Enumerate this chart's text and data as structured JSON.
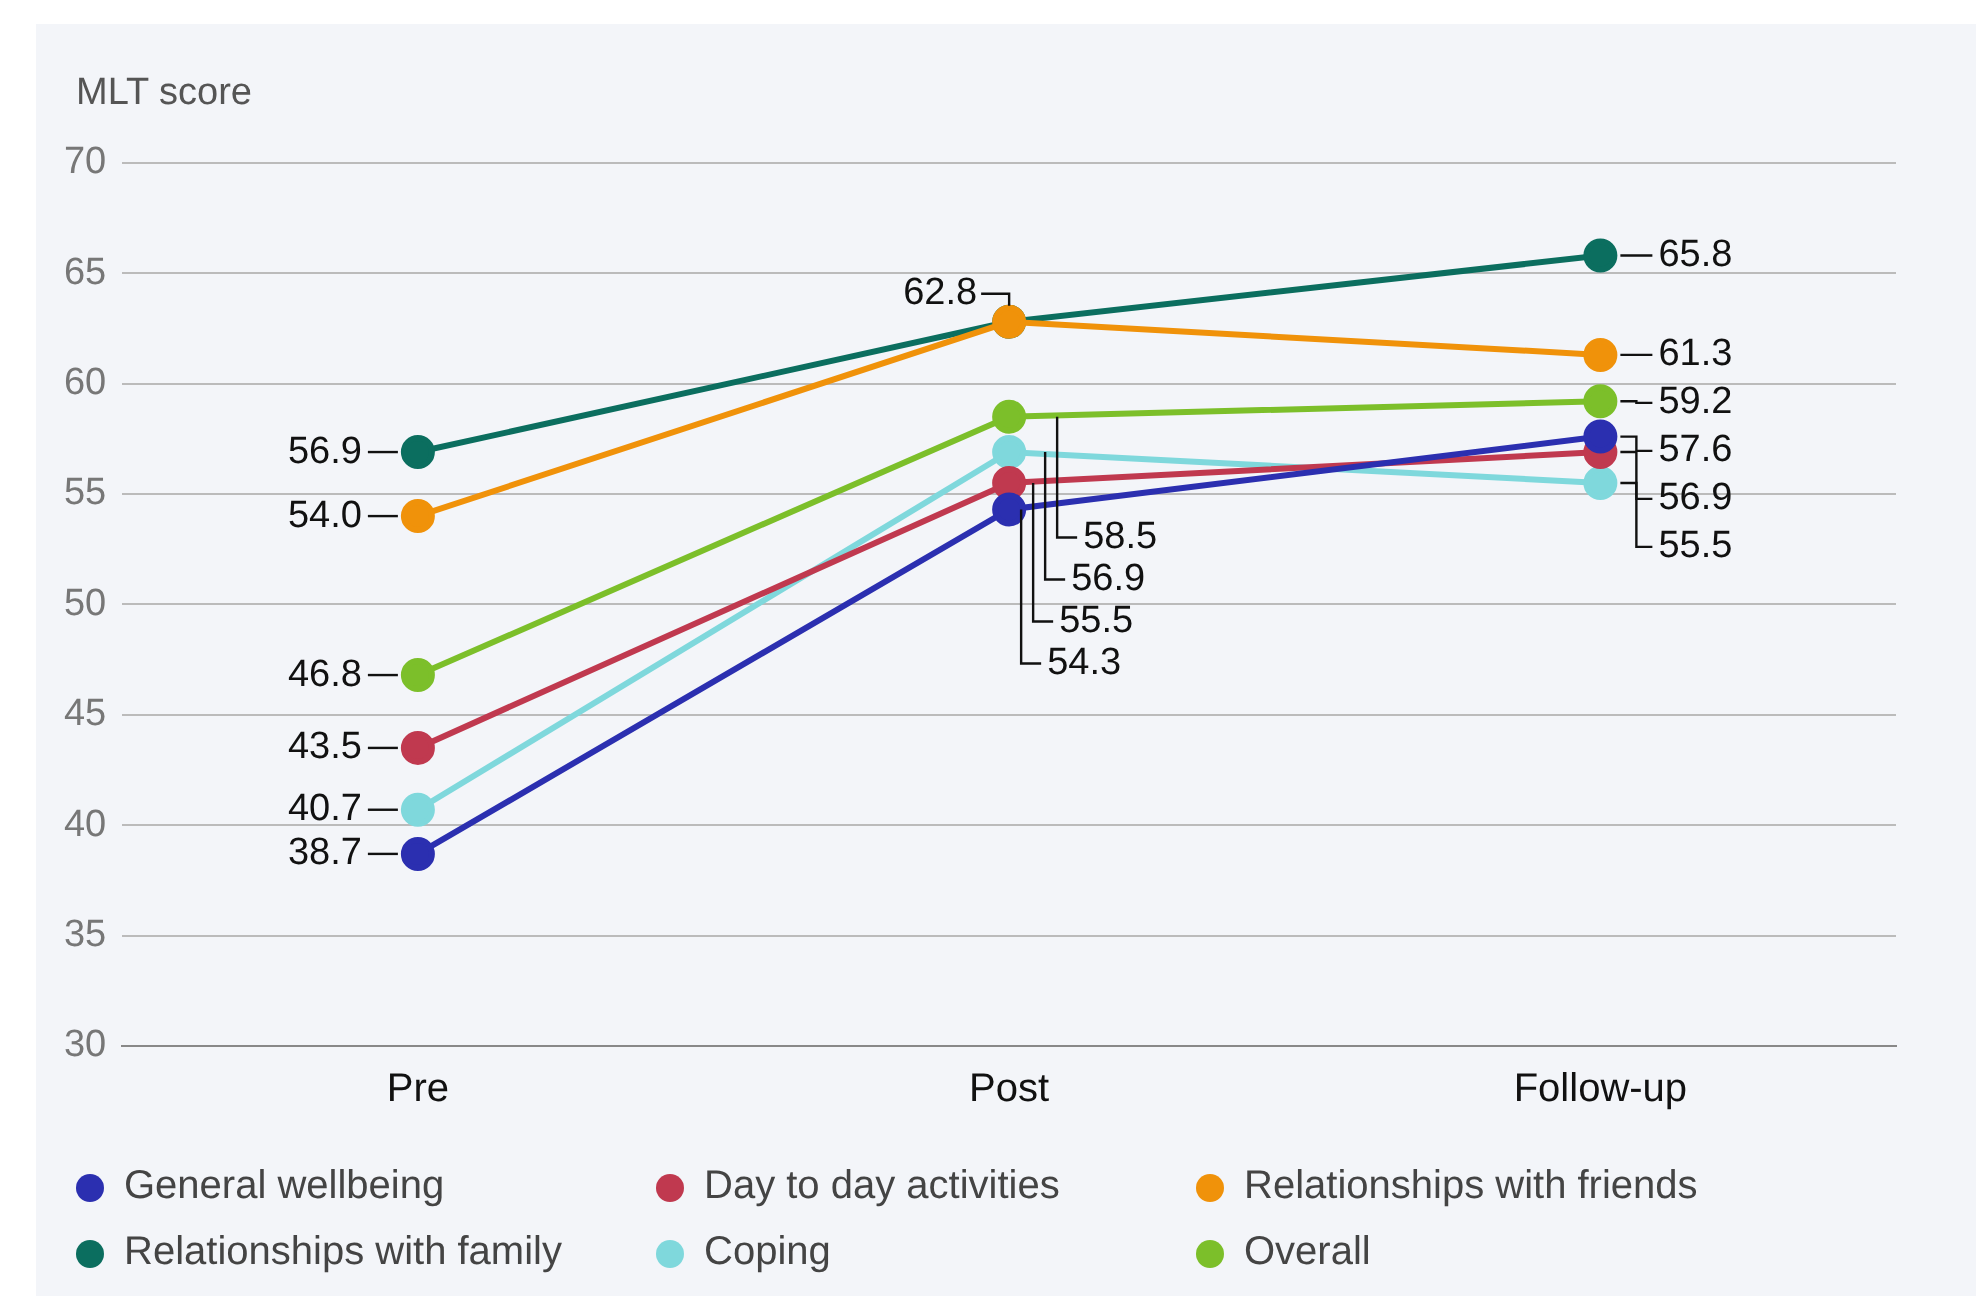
{
  "chart_data": {
    "type": "line",
    "ylabel": "MLT score",
    "categories": [
      "Pre",
      "Post",
      "Follow-up"
    ],
    "ylim": [
      30,
      70
    ],
    "yticks": [
      30,
      35,
      40,
      45,
      50,
      55,
      60,
      65,
      70
    ],
    "grid": "y",
    "legend": "bottom",
    "marker": "circle",
    "line_style": "solid",
    "series": [
      {
        "name": "General wellbeing",
        "color": "#2b2fb0",
        "values": [
          38.7,
          54.3,
          57.6
        ],
        "value_labels": [
          "38.7",
          "54.3",
          "57.6"
        ]
      },
      {
        "name": "Day to day activities",
        "color": "#c0394f",
        "values": [
          43.5,
          55.5,
          56.9
        ],
        "value_labels": [
          "43.5",
          "55.5",
          "56.9"
        ]
      },
      {
        "name": "Relationships with friends",
        "color": "#f0920a",
        "values": [
          54.0,
          62.8,
          61.3
        ],
        "value_labels": [
          "54.0",
          null,
          "61.3"
        ]
      },
      {
        "name": "Relationships with family",
        "color": "#0b6e5f",
        "values": [
          56.9,
          62.8,
          65.8
        ],
        "value_labels": [
          "56.9",
          "62.8",
          "65.8"
        ]
      },
      {
        "name": "Coping",
        "color": "#7fd8dc",
        "values": [
          40.7,
          56.9,
          55.5
        ],
        "value_labels": [
          "40.7",
          "56.9",
          "55.5"
        ]
      },
      {
        "name": "Overall",
        "color": "#7cbf2a",
        "values": [
          46.8,
          58.5,
          59.2
        ],
        "value_labels": [
          "46.8",
          "58.5",
          "59.2"
        ]
      }
    ]
  }
}
